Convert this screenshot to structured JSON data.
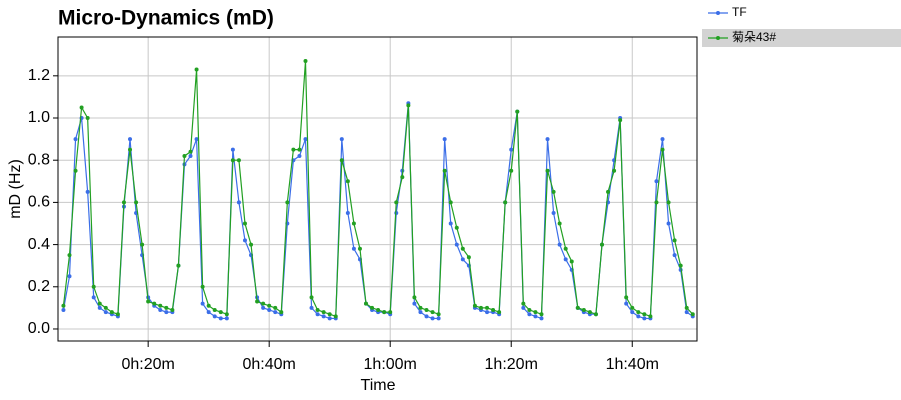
{
  "chart_data": {
    "type": "line",
    "title": "Micro-Dynamics (mD)",
    "x_label": "Time",
    "y_label": "mD (Hz)",
    "x": [
      6,
      7,
      8,
      9,
      10,
      11,
      12,
      13,
      14,
      15,
      16,
      17,
      18,
      19,
      20,
      21,
      22,
      23,
      24,
      25,
      26,
      27,
      28,
      29,
      30,
      31,
      32,
      33,
      34,
      35,
      36,
      37,
      38,
      39,
      40,
      41,
      42,
      43,
      44,
      45,
      46,
      47,
      48,
      49,
      50,
      51,
      52,
      53,
      54,
      55,
      56,
      57,
      58,
      59,
      60,
      61,
      62,
      63,
      64,
      65,
      66,
      67,
      68,
      69,
      70,
      71,
      72,
      73,
      74,
      75,
      76,
      77,
      78,
      79,
      80,
      81,
      82,
      83,
      84,
      85,
      86,
      87,
      88,
      89,
      90,
      91,
      92,
      93,
      94,
      95,
      96,
      97,
      98,
      99,
      100,
      101,
      102,
      103,
      104,
      105,
      106,
      107,
      108,
      109,
      110
    ],
    "series": [
      {
        "name": "TF",
        "color": "#3b6ee8",
        "values": [
          0.09,
          0.25,
          0.9,
          1.0,
          0.65,
          0.15,
          0.1,
          0.08,
          0.07,
          0.06,
          0.58,
          0.9,
          0.55,
          0.35,
          0.15,
          0.11,
          0.09,
          0.08,
          0.08,
          0.3,
          0.78,
          0.82,
          0.9,
          0.12,
          0.08,
          0.06,
          0.05,
          0.05,
          0.85,
          0.6,
          0.42,
          0.35,
          0.15,
          0.1,
          0.09,
          0.08,
          0.07,
          0.5,
          0.8,
          0.82,
          0.9,
          0.1,
          0.07,
          0.06,
          0.05,
          0.05,
          0.9,
          0.55,
          0.38,
          0.33,
          0.12,
          0.09,
          0.08,
          0.08,
          0.07,
          0.55,
          0.75,
          1.07,
          0.12,
          0.08,
          0.06,
          0.05,
          0.05,
          0.9,
          0.5,
          0.4,
          0.33,
          0.3,
          0.1,
          0.09,
          0.08,
          0.08,
          0.07,
          0.6,
          0.85,
          1.03,
          0.1,
          0.07,
          0.06,
          0.05,
          0.9,
          0.55,
          0.4,
          0.33,
          0.28,
          0.1,
          0.08,
          0.07,
          0.07,
          0.4,
          0.6,
          0.8,
          1.0,
          0.12,
          0.08,
          0.06,
          0.05,
          0.05,
          0.7,
          0.9,
          0.5,
          0.35,
          0.28,
          0.08,
          0.06
        ]
      },
      {
        "name": "菊朵43#",
        "color": "#22a022",
        "values": [
          0.11,
          0.35,
          0.75,
          1.05,
          1.0,
          0.2,
          0.12,
          0.1,
          0.08,
          0.07,
          0.6,
          0.85,
          0.6,
          0.4,
          0.13,
          0.12,
          0.11,
          0.1,
          0.09,
          0.3,
          0.82,
          0.84,
          1.23,
          0.2,
          0.11,
          0.09,
          0.08,
          0.07,
          0.8,
          0.8,
          0.5,
          0.4,
          0.13,
          0.12,
          0.11,
          0.1,
          0.08,
          0.6,
          0.85,
          0.85,
          1.27,
          0.15,
          0.09,
          0.08,
          0.07,
          0.06,
          0.8,
          0.7,
          0.5,
          0.38,
          0.12,
          0.1,
          0.09,
          0.08,
          0.08,
          0.6,
          0.72,
          1.06,
          0.15,
          0.1,
          0.09,
          0.08,
          0.07,
          0.75,
          0.6,
          0.48,
          0.38,
          0.34,
          0.11,
          0.1,
          0.1,
          0.09,
          0.08,
          0.6,
          0.75,
          1.03,
          0.12,
          0.09,
          0.08,
          0.07,
          0.75,
          0.65,
          0.5,
          0.38,
          0.32,
          0.1,
          0.09,
          0.08,
          0.07,
          0.4,
          0.65,
          0.75,
          0.99,
          0.15,
          0.1,
          0.08,
          0.07,
          0.06,
          0.6,
          0.85,
          0.6,
          0.42,
          0.3,
          0.1,
          0.07
        ]
      }
    ],
    "xlim": [
      5.1,
      110.7
    ],
    "xticks": [
      {
        "value": 20,
        "label": "0h:20m"
      },
      {
        "value": 40,
        "label": "0h:40m"
      },
      {
        "value": 60,
        "label": "1h:00m"
      },
      {
        "value": 80,
        "label": "1h:20m"
      },
      {
        "value": 100,
        "label": "1h:40m"
      }
    ],
    "ylim": [
      -0.057,
      1.384
    ],
    "yticks": [
      {
        "value": 0,
        "label": "0.0"
      },
      0.2,
      0.4,
      0.6,
      0.8,
      {
        "value": 1,
        "label": "1.0"
      },
      1.2
    ],
    "grid": true
  }
}
